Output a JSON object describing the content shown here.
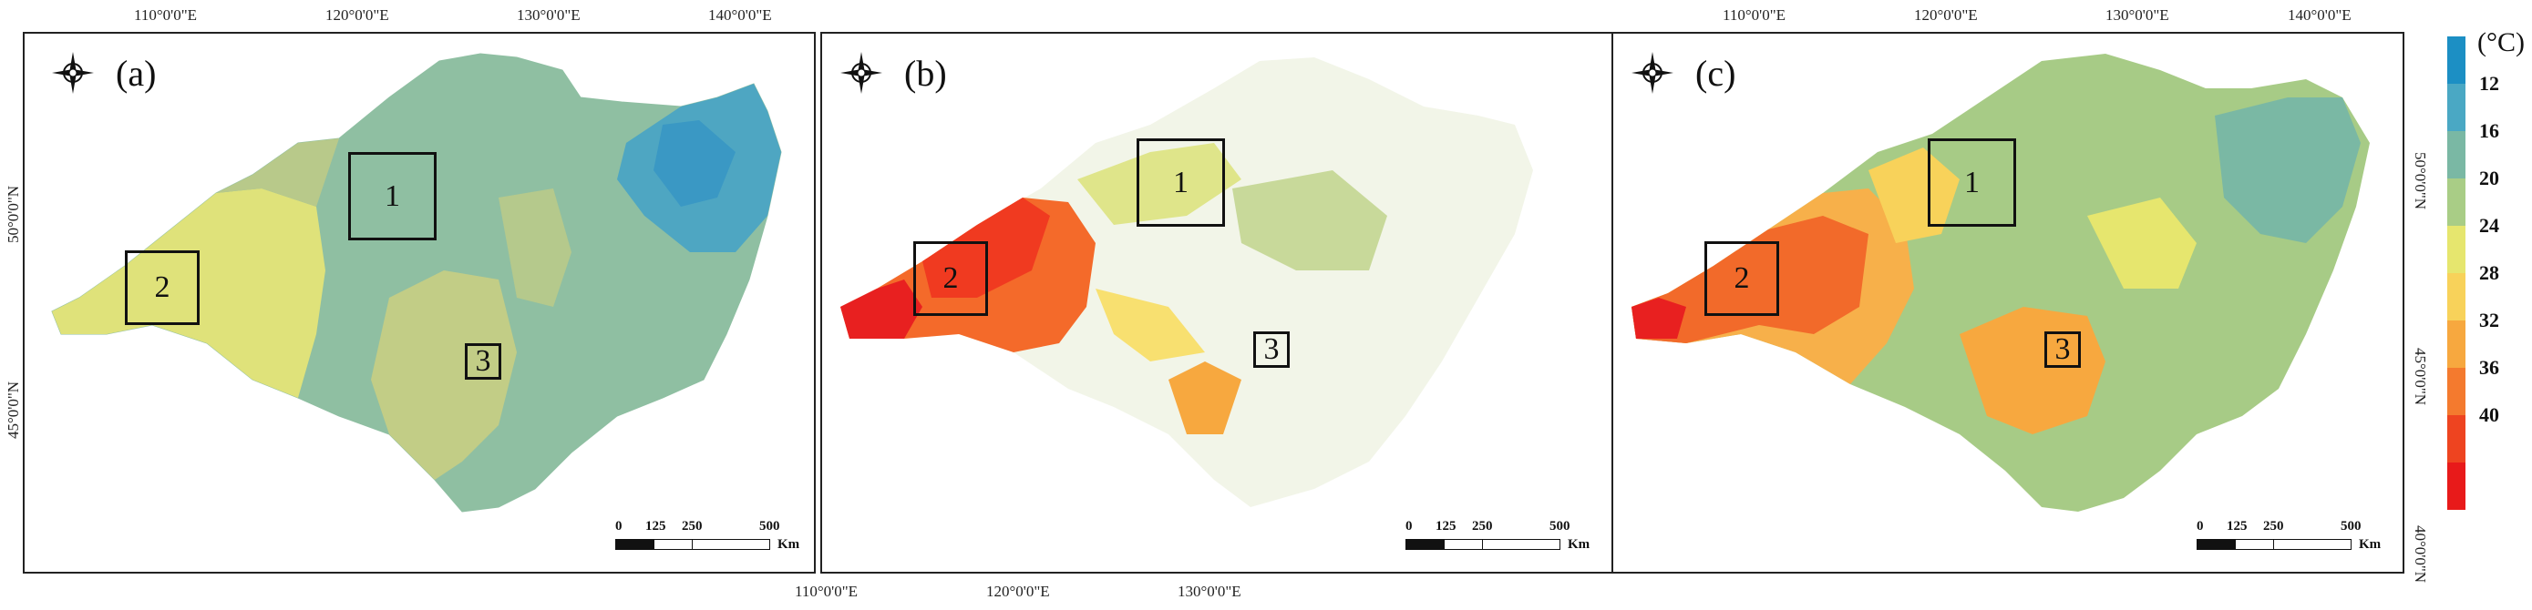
{
  "panels": [
    {
      "label": "(a)",
      "top_ticks": [
        "110°0'0\"E",
        "120°0'0\"E",
        "130°0'0\"E",
        "140°0'0\"E"
      ],
      "left_ticks": [
        "50°0'0\"N",
        "45°0'0\"N"
      ]
    },
    {
      "label": "(b)",
      "bottom_ticks": [
        "110°0'0\"E",
        "120°0'0\"E",
        "130°0'0\"E"
      ]
    },
    {
      "label": "(c)",
      "top_ticks": [
        "110°0'0\"E",
        "120°0'0\"E",
        "130°0'0\"E",
        "140°0'0\"E"
      ],
      "right_ticks": [
        "50°0'0\"N",
        "45°0'0\"N",
        "40°0'0\"N"
      ]
    }
  ],
  "regions": [
    "1",
    "2",
    "3"
  ],
  "scalebar": {
    "ticks": [
      "0",
      "125",
      "250",
      "500"
    ],
    "unit": "Km"
  },
  "legend": {
    "title": "(°C)",
    "labels": [
      "12",
      "16",
      "20",
      "24",
      "28",
      "32",
      "36",
      "40"
    ],
    "colors": [
      "#1c8fc4",
      "#4aa8c4",
      "#7ab8a4",
      "#a9cd86",
      "#e6e66e",
      "#f8d25a",
      "#f7a83f",
      "#f47a2e",
      "#ee4420",
      "#e81a1a"
    ]
  }
}
